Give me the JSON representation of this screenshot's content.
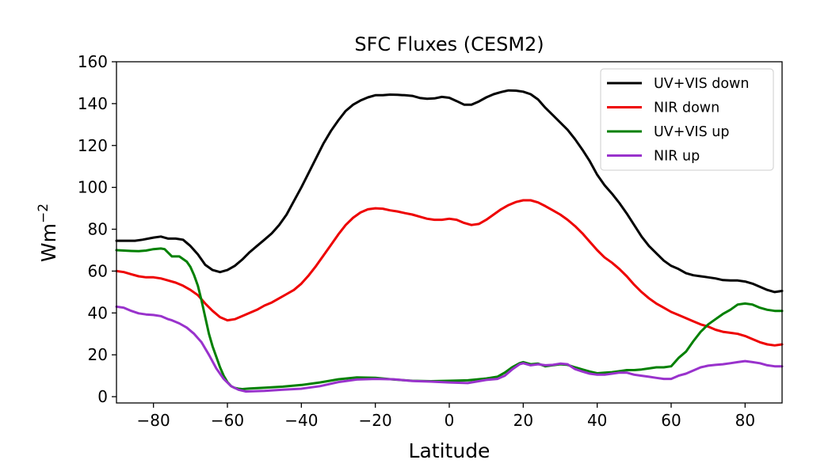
{
  "chart_data": {
    "type": "line",
    "title": "SFC Fluxes (CESM2)",
    "xlabel": "Latitude",
    "ylabel": "Wm",
    "ylabel_superscript": "−2",
    "xlim": [
      -90,
      90
    ],
    "ylim": [
      -3,
      160
    ],
    "xticks": [
      -80,
      -60,
      -40,
      -20,
      0,
      20,
      40,
      60,
      80
    ],
    "xtick_labels": [
      "−80",
      "−60",
      "−40",
      "−20",
      "0",
      "20",
      "40",
      "60",
      "80"
    ],
    "yticks": [
      0,
      20,
      40,
      60,
      80,
      100,
      120,
      140,
      160
    ],
    "ytick_labels": [
      "0",
      "20",
      "40",
      "60",
      "80",
      "100",
      "120",
      "140",
      "160"
    ],
    "grid": false,
    "legend_position": "top-right",
    "series": [
      {
        "name": "UV+VIS down",
        "color": "#000000",
        "x": [
          -90,
          -85,
          -83,
          -80,
          -78,
          -76,
          -74,
          -72,
          -70,
          -68,
          -66,
          -64,
          -62,
          -60,
          -58,
          -56,
          -54,
          -52,
          -50,
          -48,
          -46,
          -44,
          -42,
          -40,
          -38,
          -36,
          -34,
          -32,
          -30,
          -28,
          -26,
          -24,
          -22,
          -20,
          -18,
          -16,
          -14,
          -12,
          -10,
          -8,
          -6,
          -4,
          -2,
          0,
          2,
          4,
          6,
          8,
          10,
          12,
          14,
          16,
          18,
          20,
          22,
          24,
          26,
          28,
          30,
          32,
          34,
          36,
          38,
          40,
          42,
          44,
          46,
          48,
          50,
          52,
          54,
          56,
          58,
          60,
          62,
          64,
          66,
          68,
          70,
          72,
          74,
          76,
          78,
          80,
          82,
          84,
          86,
          88,
          90
        ],
        "y": [
          74.5,
          74.5,
          75,
          76,
          76.5,
          75.5,
          75.5,
          75,
          72,
          68,
          63,
          60.5,
          59.5,
          60.5,
          62.5,
          65.5,
          69,
          72,
          75,
          78,
          82,
          87,
          93.5,
          100,
          107,
          114,
          121,
          127,
          132,
          136.5,
          139.5,
          141.5,
          143,
          144,
          144,
          144.3,
          144.2,
          144,
          143.7,
          142.7,
          142.3,
          142.5,
          143.2,
          142.8,
          141.2,
          139.5,
          139.5,
          141,
          143,
          144.5,
          145.5,
          146.3,
          146.2,
          145.7,
          144.5,
          142,
          138,
          134.5,
          131,
          127.5,
          123,
          118,
          112.5,
          106,
          101,
          97,
          92.5,
          87.5,
          82,
          76.5,
          72,
          68.5,
          65,
          62.5,
          61,
          59,
          58,
          57.5,
          57,
          56.5,
          55.7,
          55.5,
          55.5,
          55,
          54,
          52.5,
          51,
          50,
          50.5
        ]
      },
      {
        "name": "NIR down",
        "color": "#ee0000",
        "x": [
          -90,
          -88,
          -86,
          -84,
          -82,
          -80,
          -78,
          -76,
          -74,
          -72,
          -70,
          -68,
          -66,
          -64,
          -62,
          -60,
          -58,
          -56,
          -54,
          -52,
          -50,
          -48,
          -46,
          -44,
          -42,
          -40,
          -38,
          -36,
          -34,
          -32,
          -30,
          -28,
          -26,
          -24,
          -22,
          -20,
          -18,
          -16,
          -14,
          -12,
          -10,
          -8,
          -6,
          -4,
          -2,
          0,
          2,
          4,
          6,
          8,
          10,
          12,
          14,
          16,
          18,
          20,
          22,
          24,
          26,
          28,
          30,
          32,
          34,
          36,
          38,
          40,
          42,
          44,
          46,
          48,
          50,
          52,
          54,
          56,
          58,
          60,
          62,
          64,
          66,
          68,
          70,
          72,
          74,
          76,
          78,
          80,
          82,
          84,
          86,
          88,
          90
        ],
        "y": [
          60,
          59.5,
          58.5,
          57.5,
          57,
          57,
          56.5,
          55.5,
          54.5,
          53,
          51,
          48.5,
          44.5,
          41,
          38,
          36.5,
          37,
          38.5,
          40,
          41.5,
          43.5,
          45,
          47,
          49,
          51,
          54,
          58,
          62.5,
          67.5,
          72.5,
          77.5,
          82,
          85.5,
          88,
          89.5,
          90,
          89.8,
          89,
          88.5,
          87.7,
          87,
          86,
          85,
          84.5,
          84.5,
          85,
          84.5,
          83,
          82,
          82.5,
          84.5,
          87,
          89.5,
          91.5,
          93,
          93.8,
          93.8,
          92.8,
          91,
          89,
          87,
          84.5,
          81.5,
          78,
          74,
          70,
          66.5,
          64,
          61,
          57.5,
          53.5,
          50,
          47,
          44.5,
          42.5,
          40.5,
          39,
          37.5,
          36,
          34.5,
          33.5,
          32,
          31,
          30.5,
          30,
          29,
          27.5,
          26,
          25,
          24.5,
          25
        ]
      },
      {
        "name": "UV+VIS up",
        "color": "#008000",
        "x": [
          -90,
          -88,
          -86,
          -84,
          -82,
          -80,
          -78,
          -77,
          -75,
          -73,
          -71,
          -70,
          -69,
          -68,
          -67,
          -66,
          -65,
          -64,
          -63,
          -62,
          -61,
          -60,
          -59,
          -58,
          -57,
          -56,
          -54,
          -50,
          -45,
          -40,
          -35,
          -30,
          -25,
          -20,
          -15,
          -10,
          -5,
          0,
          5,
          10,
          13,
          15,
          17,
          19,
          20,
          22,
          24,
          26,
          28,
          30,
          32,
          34,
          36,
          38,
          40,
          42,
          44,
          46,
          48,
          50,
          52,
          54,
          56,
          58,
          60,
          62,
          64,
          66,
          68,
          70,
          72,
          74,
          76,
          78,
          80,
          82,
          84,
          86,
          88,
          90
        ],
        "y": [
          70,
          69.8,
          69.6,
          69.5,
          69.8,
          70.5,
          70.8,
          70.5,
          67,
          67,
          64.5,
          62,
          58,
          53,
          46,
          38,
          30,
          24,
          19,
          14,
          10,
          7,
          5,
          4.2,
          3.8,
          3.6,
          3.9,
          4.3,
          4.8,
          5.6,
          6.8,
          8.3,
          9.2,
          9,
          8.2,
          7.6,
          7.4,
          7.6,
          7.8,
          8.7,
          9.5,
          11.5,
          14,
          16,
          16.5,
          15.5,
          15.8,
          14.5,
          15,
          15.5,
          15.2,
          14,
          13,
          12,
          11.2,
          11.5,
          11.7,
          12.2,
          12.7,
          12.7,
          13,
          13.5,
          14,
          14,
          14.5,
          18.5,
          21.5,
          26.5,
          31,
          34.5,
          37,
          39.5,
          41.5,
          44,
          44.5,
          44,
          42.5,
          41.5,
          41,
          41
        ]
      },
      {
        "name": "NIR up",
        "color": "#9932cc",
        "x": [
          -90,
          -88,
          -86,
          -84,
          -82,
          -80,
          -78,
          -76,
          -75,
          -73,
          -71,
          -69,
          -67,
          -65,
          -63,
          -61,
          -59,
          -57,
          -55,
          -50,
          -45,
          -40,
          -35,
          -30,
          -25,
          -20,
          -15,
          -10,
          -5,
          0,
          5,
          10,
          13,
          15,
          17,
          19,
          20,
          22,
          24,
          26,
          28,
          30,
          32,
          34,
          36,
          38,
          40,
          42,
          44,
          46,
          48,
          50,
          52,
          54,
          56,
          58,
          60,
          62,
          64,
          66,
          68,
          70,
          72,
          74,
          76,
          78,
          80,
          82,
          84,
          86,
          88,
          90
        ],
        "y": [
          43,
          42.5,
          41,
          39.8,
          39.3,
          39,
          38.5,
          37,
          36.5,
          35,
          33,
          30,
          26,
          20,
          13.5,
          8.5,
          5,
          3.3,
          2.5,
          2.8,
          3.3,
          3.8,
          5,
          7,
          8.2,
          8.5,
          8.3,
          7.5,
          7.2,
          6.8,
          6.5,
          8,
          8.5,
          10,
          13,
          15.5,
          16,
          15,
          15.5,
          15,
          15.2,
          15.8,
          15.5,
          13.2,
          12,
          11,
          10.5,
          10.5,
          11,
          11.5,
          11.5,
          10.5,
          10,
          9.5,
          9,
          8.5,
          8.5,
          10,
          11,
          12.5,
          14,
          14.8,
          15.2,
          15.5,
          16,
          16.5,
          17,
          16.5,
          16,
          15,
          14.5,
          14.5
        ]
      }
    ]
  }
}
